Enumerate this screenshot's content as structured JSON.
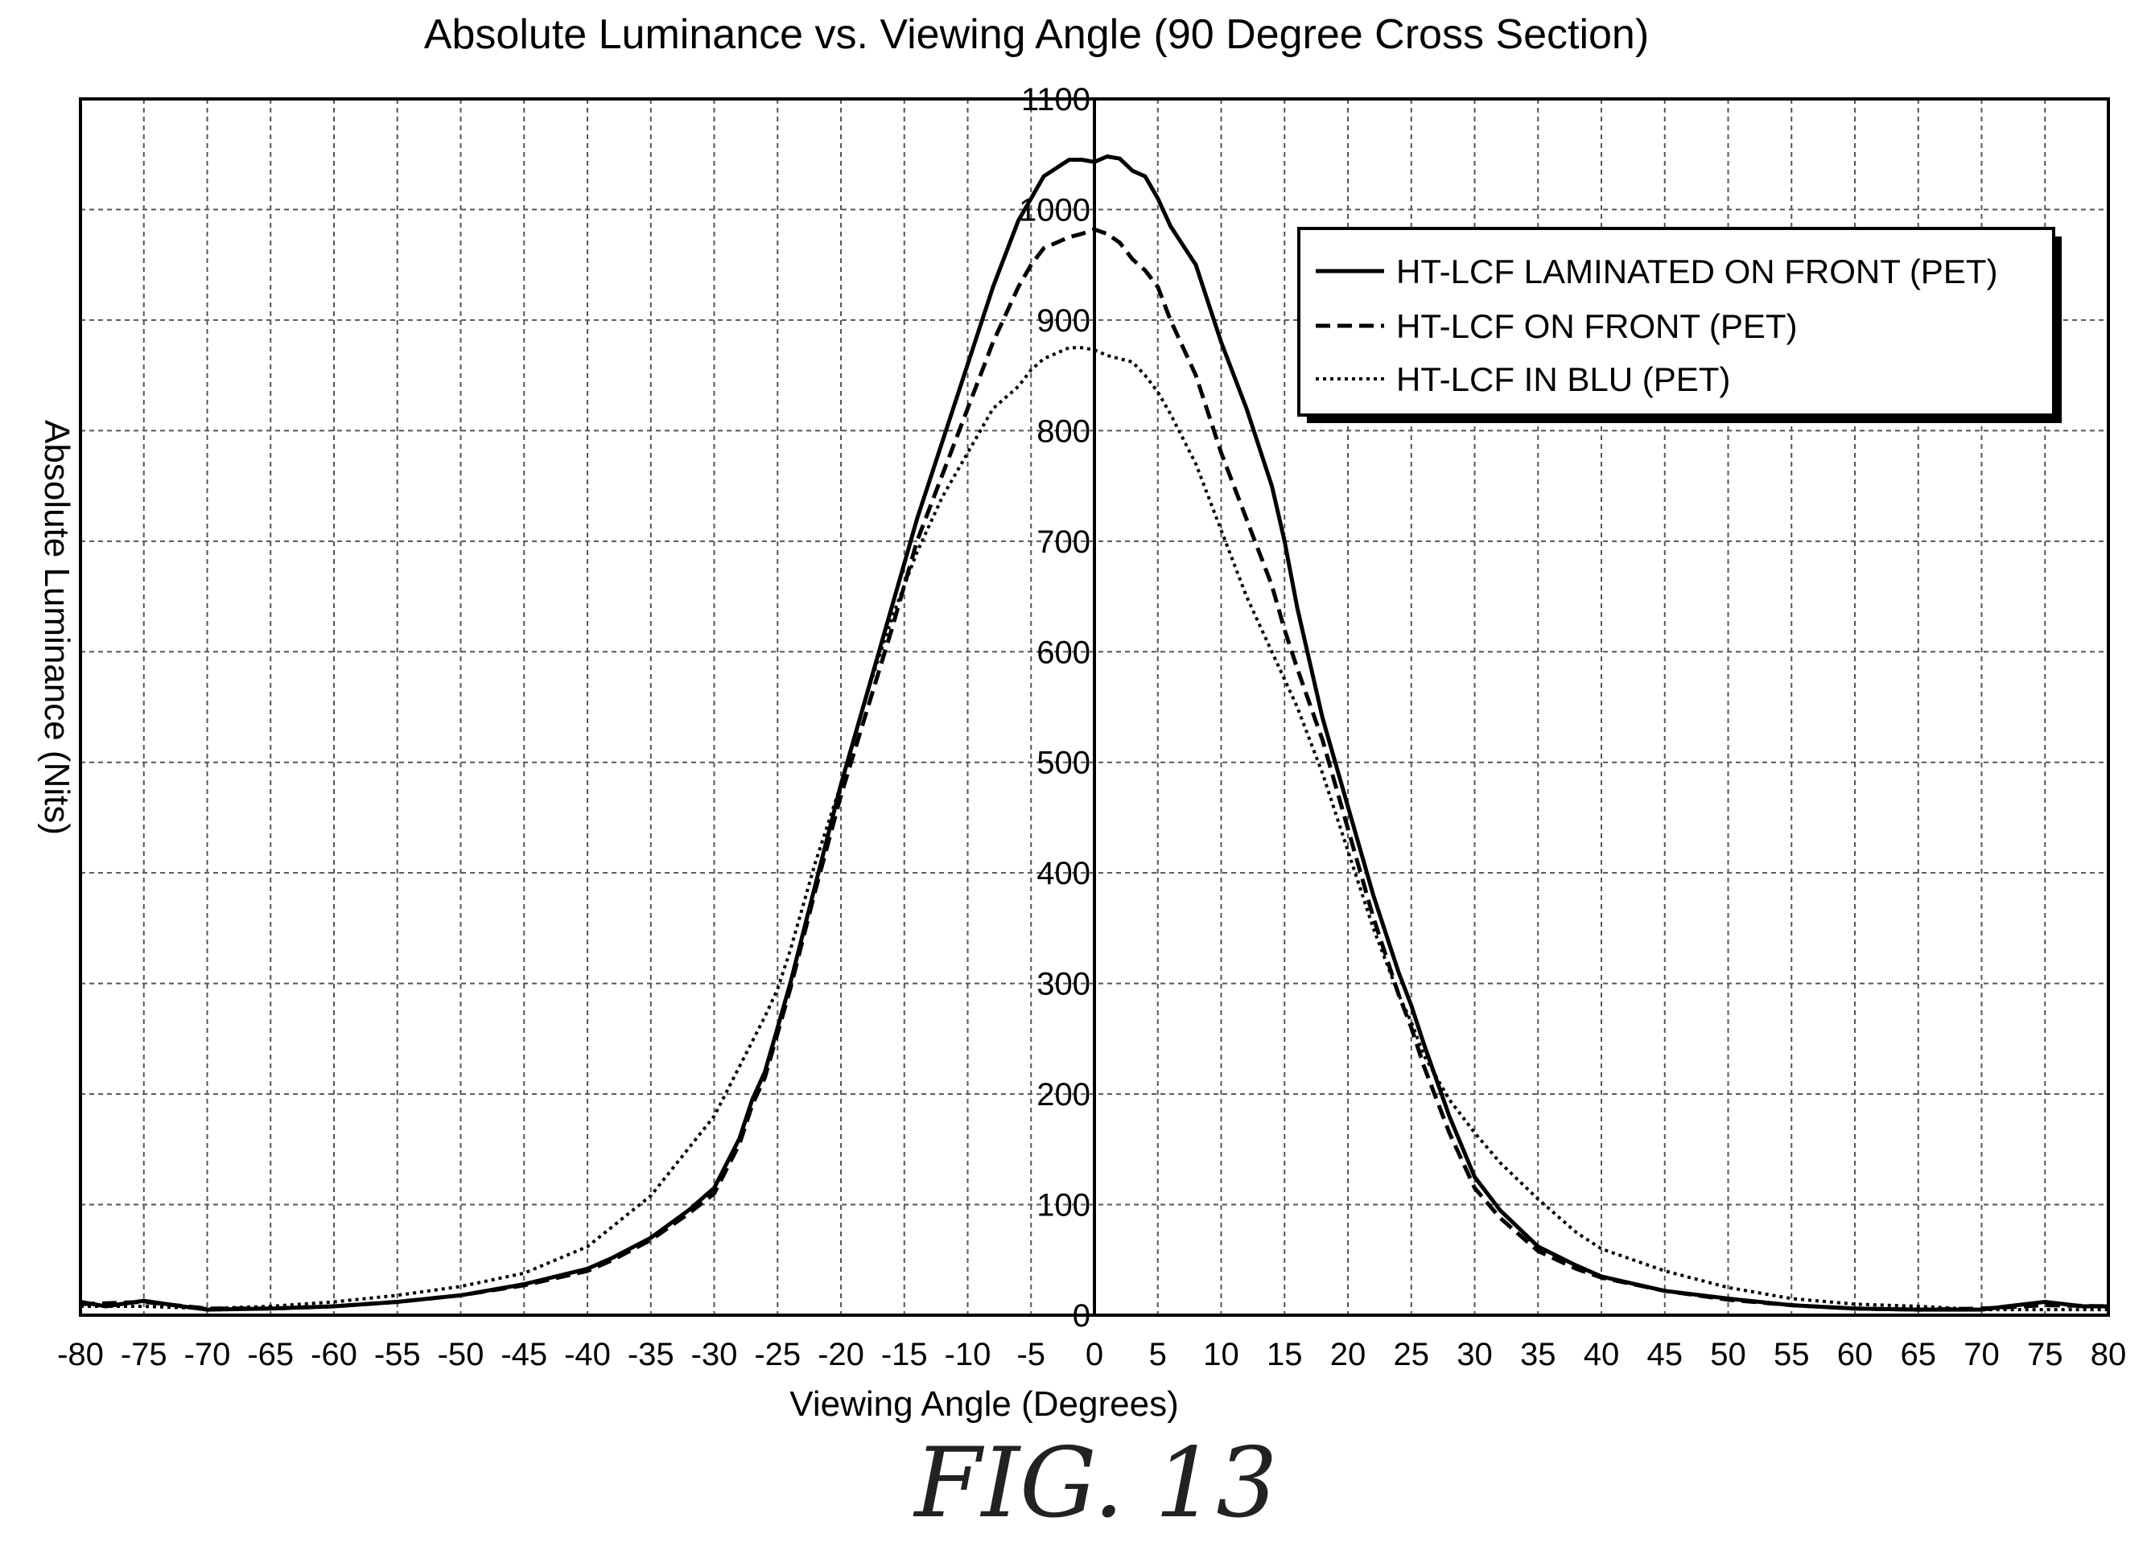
{
  "chart_data": {
    "type": "line",
    "title": "Absolute Luminance vs. Viewing Angle (90 Degree Cross Section)",
    "xlabel": "Viewing Angle (Degrees)",
    "ylabel": "Absolute Luminance (Nits)",
    "xlim": [
      -80,
      80
    ],
    "ylim": [
      0,
      1100
    ],
    "xticks": [
      -80,
      -75,
      -70,
      -65,
      -60,
      -55,
      -50,
      -45,
      -40,
      -35,
      -30,
      -25,
      -20,
      -15,
      -10,
      -5,
      0,
      5,
      10,
      15,
      20,
      25,
      30,
      35,
      40,
      45,
      50,
      55,
      60,
      65,
      70,
      75,
      80
    ],
    "yticks": [
      0,
      100,
      200,
      300,
      400,
      500,
      600,
      700,
      800,
      900,
      1000,
      1100
    ],
    "grid": true,
    "legend_position": "top-right",
    "series": [
      {
        "name": "HT-LCF LAMINATED ON FRONT (PET)",
        "style": "solid",
        "x": [
          -80,
          -78,
          -75,
          -72,
          -70,
          -65,
          -60,
          -55,
          -50,
          -45,
          -40,
          -38,
          -35,
          -32,
          -30,
          -28,
          -27,
          -26,
          -25,
          -24,
          -22,
          -20,
          -18,
          -16,
          -15,
          -14,
          -12,
          -10,
          -8,
          -6,
          -5,
          -4,
          -2,
          -1,
          0,
          1,
          2,
          3,
          4,
          5,
          6,
          8,
          10,
          12,
          14,
          15,
          16,
          18,
          20,
          22,
          24,
          25,
          26,
          28,
          30,
          32,
          35,
          38,
          40,
          45,
          50,
          55,
          60,
          65,
          70,
          72,
          75,
          78,
          80
        ],
        "y": [
          12,
          8,
          13,
          8,
          5,
          6,
          8,
          12,
          18,
          28,
          42,
          52,
          70,
          95,
          115,
          160,
          195,
          220,
          260,
          300,
          390,
          480,
          560,
          640,
          680,
          720,
          790,
          860,
          930,
          990,
          1010,
          1030,
          1045,
          1045,
          1043,
          1048,
          1046,
          1035,
          1030,
          1010,
          985,
          950,
          880,
          820,
          750,
          700,
          640,
          540,
          460,
          380,
          310,
          280,
          245,
          180,
          125,
          95,
          62,
          45,
          35,
          22,
          15,
          9,
          6,
          5,
          5,
          8,
          12,
          8,
          8
        ]
      },
      {
        "name": "HT-LCF ON FRONT (PET)",
        "style": "dashed",
        "x": [
          -80,
          -75,
          -70,
          -65,
          -60,
          -55,
          -50,
          -45,
          -40,
          -38,
          -35,
          -32,
          -30,
          -28,
          -27,
          -26,
          -25,
          -24,
          -22,
          -20,
          -18,
          -16,
          -15,
          -14,
          -12,
          -10,
          -8,
          -6,
          -5,
          -4,
          -2,
          -1,
          0,
          1,
          2,
          3,
          4,
          5,
          6,
          8,
          10,
          12,
          14,
          15,
          16,
          18,
          20,
          22,
          24,
          25,
          26,
          28,
          30,
          32,
          35,
          38,
          40,
          45,
          50,
          55,
          60,
          65,
          70,
          75,
          80
        ],
        "y": [
          10,
          12,
          6,
          6,
          8,
          12,
          18,
          27,
          40,
          50,
          68,
          92,
          110,
          155,
          190,
          215,
          255,
          295,
          385,
          470,
          545,
          620,
          660,
          700,
          760,
          820,
          880,
          930,
          950,
          965,
          975,
          978,
          982,
          978,
          970,
          955,
          945,
          930,
          900,
          850,
          780,
          720,
          660,
          620,
          585,
          520,
          440,
          360,
          290,
          260,
          225,
          165,
          115,
          88,
          58,
          42,
          34,
          22,
          14,
          9,
          6,
          5,
          6,
          9,
          8
        ]
      },
      {
        "name": "HT-LCF IN BLU (PET)",
        "style": "dotted",
        "x": [
          -80,
          -75,
          -70,
          -65,
          -60,
          -55,
          -50,
          -45,
          -40,
          -35,
          -30,
          -28,
          -26,
          -25,
          -24,
          -22,
          -20,
          -18,
          -16,
          -15,
          -14,
          -12,
          -10,
          -8,
          -6,
          -5,
          -4,
          -2,
          -1,
          0,
          1,
          2,
          3,
          4,
          5,
          6,
          8,
          10,
          12,
          14,
          15,
          16,
          18,
          20,
          22,
          24,
          25,
          26,
          28,
          30,
          32,
          35,
          38,
          40,
          45,
          50,
          55,
          60,
          65,
          70,
          75,
          80
        ],
        "y": [
          8,
          8,
          6,
          8,
          12,
          18,
          26,
          38,
          62,
          108,
          180,
          225,
          270,
          295,
          330,
          410,
          480,
          560,
          630,
          660,
          690,
          740,
          780,
          820,
          840,
          855,
          865,
          875,
          875,
          873,
          868,
          865,
          862,
          850,
          835,
          815,
          770,
          710,
          650,
          600,
          575,
          550,
          490,
          420,
          350,
          290,
          265,
          235,
          195,
          165,
          138,
          105,
          75,
          60,
          40,
          25,
          15,
          10,
          8,
          5,
          5,
          5
        ]
      }
    ]
  },
  "caption": "FIG. 13"
}
